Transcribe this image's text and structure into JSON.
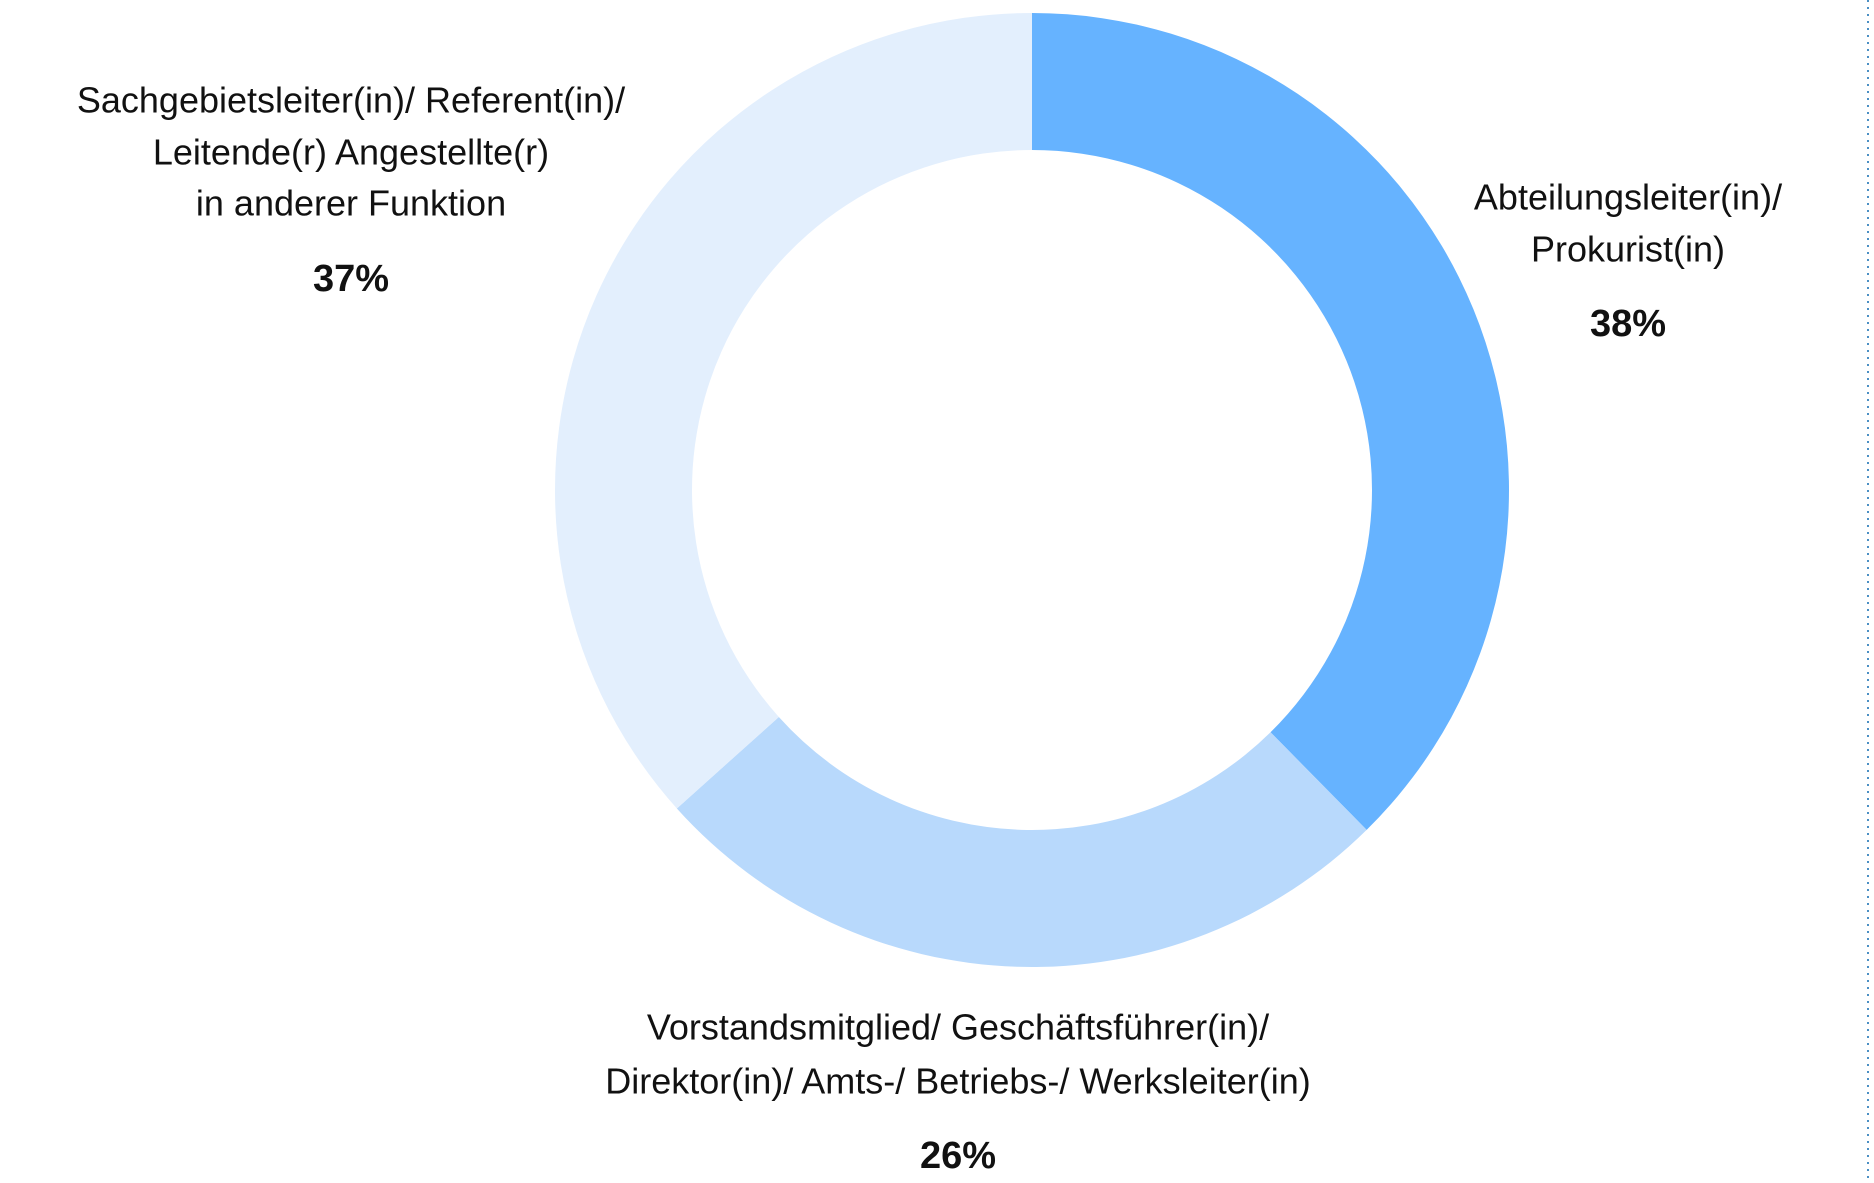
{
  "chart_data": {
    "type": "donut",
    "categories": [
      [
        "Abteilungsleiter(in)/",
        "Prokurist(in)"
      ],
      [
        "Vorstandsmitglied/ Geschäftsführer(in)/",
        "Direktor(in)/ Amts-/ Betriebs-/ Werksleiter(in)"
      ],
      [
        "Sachgebietsleiter(in)/ Referent(in)/",
        "Leitende(r) Angestellte(r)",
        "in anderer Funktion"
      ]
    ],
    "values": [
      38,
      26,
      37
    ],
    "value_labels": [
      "38%",
      "26%",
      "37%"
    ],
    "colors": [
      "#66b3ff",
      "#b8d9fc",
      "#e3effd"
    ]
  }
}
